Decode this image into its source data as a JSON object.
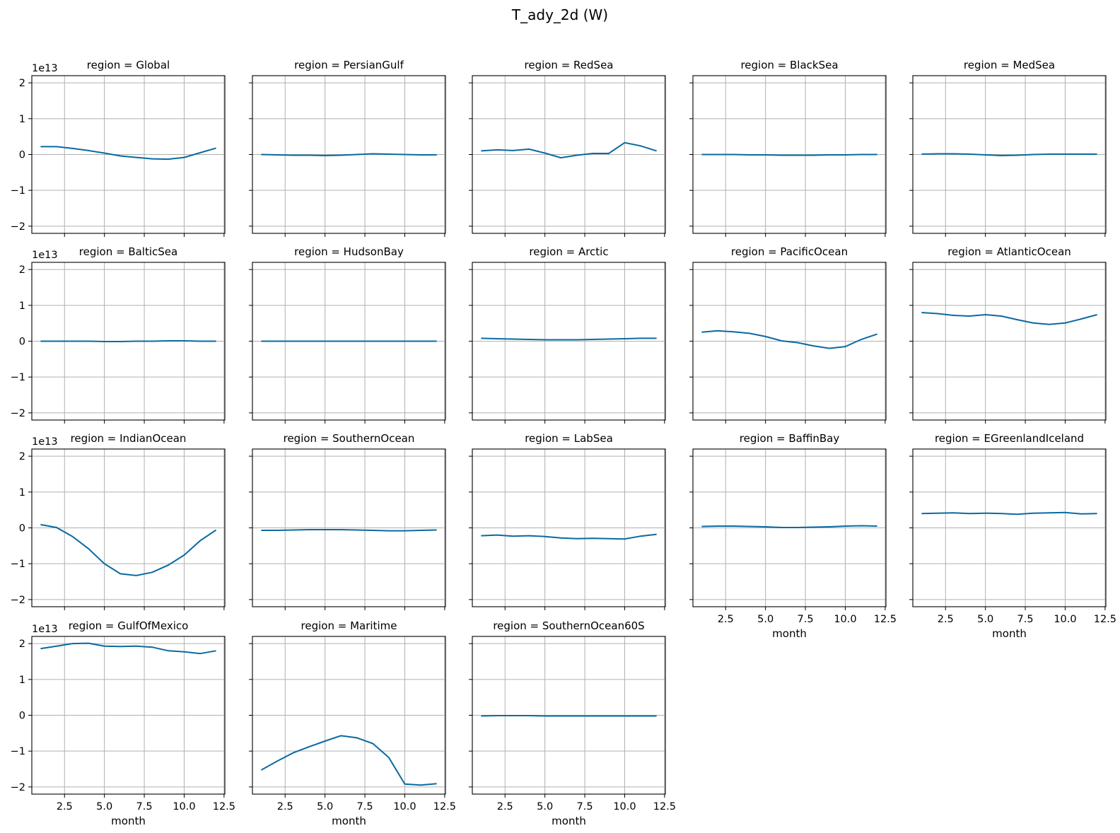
{
  "figure": {
    "title": "T_ady_2d (W)"
  },
  "colors": {
    "line": "#0a6aa0",
    "grid": "#b0b0b0",
    "axes": "#000000"
  },
  "axis": {
    "x_ticks": [
      "2.5",
      "5.0",
      "7.5",
      "10.0",
      "12.5"
    ],
    "y_ticks": [
      "−2",
      "−1",
      "0",
      "1",
      "2"
    ],
    "y_offset": "1e13",
    "xlabel": "month"
  },
  "chart_data": {
    "type": "line",
    "layout": "facet-grid 4x5, shared axes",
    "x": [
      1,
      2,
      3,
      4,
      5,
      6,
      7,
      8,
      9,
      10,
      11,
      12
    ],
    "xlim": [
      0.45,
      12.55
    ],
    "ylim": [
      2.2,
      -2.2
    ],
    "y_inverted": true,
    "y_scale": 10000000000000.0,
    "grid": true,
    "panels": [
      {
        "title": "region = Global",
        "values": [
          0.22,
          0.22,
          0.17,
          0.11,
          0.04,
          -0.04,
          -0.08,
          -0.12,
          -0.13,
          -0.08,
          0.05,
          0.18
        ]
      },
      {
        "title": "region = PersianGulf",
        "values": [
          0.0,
          -0.01,
          -0.02,
          -0.02,
          -0.03,
          -0.02,
          0.0,
          0.02,
          0.01,
          0.0,
          -0.01,
          -0.01
        ]
      },
      {
        "title": "region = RedSea",
        "values": [
          0.1,
          0.13,
          0.11,
          0.15,
          0.04,
          -0.09,
          -0.02,
          0.03,
          0.03,
          0.33,
          0.24,
          0.1
        ]
      },
      {
        "title": "region = BlackSea",
        "values": [
          0.0,
          0.0,
          0.0,
          -0.01,
          -0.01,
          -0.02,
          -0.02,
          -0.02,
          -0.01,
          -0.01,
          0.0,
          0.0
        ]
      },
      {
        "title": "region = MedSea",
        "values": [
          0.01,
          0.02,
          0.02,
          0.01,
          -0.01,
          -0.03,
          -0.02,
          0.0,
          0.01,
          0.01,
          0.01,
          0.01
        ]
      },
      {
        "title": "region = BalticSea",
        "values": [
          0.0,
          0.0,
          0.0,
          0.0,
          -0.01,
          -0.01,
          0.0,
          0.0,
          0.01,
          0.01,
          0.0,
          0.0
        ]
      },
      {
        "title": "region = HudsonBay",
        "values": [
          0.0,
          0.0,
          0.0,
          0.0,
          0.0,
          0.0,
          0.0,
          0.0,
          0.0,
          0.0,
          0.0,
          0.0
        ]
      },
      {
        "title": "region = Arctic",
        "values": [
          0.08,
          0.07,
          0.06,
          0.05,
          0.04,
          0.04,
          0.04,
          0.05,
          0.06,
          0.07,
          0.08,
          0.08
        ]
      },
      {
        "title": "region = PacificOcean",
        "values": [
          0.25,
          0.29,
          0.26,
          0.22,
          0.13,
          0.01,
          -0.04,
          -0.13,
          -0.2,
          -0.15,
          0.05,
          0.2
        ]
      },
      {
        "title": "region = AtlanticOcean",
        "values": [
          0.8,
          0.77,
          0.72,
          0.7,
          0.74,
          0.7,
          0.6,
          0.51,
          0.47,
          0.51,
          0.62,
          0.74
        ]
      },
      {
        "title": "region = IndianOcean",
        "values": [
          0.09,
          0.01,
          -0.24,
          -0.58,
          -1.0,
          -1.28,
          -1.33,
          -1.24,
          -1.04,
          -0.76,
          -0.36,
          -0.06
        ]
      },
      {
        "title": "region = SouthernOcean",
        "values": [
          -0.07,
          -0.07,
          -0.06,
          -0.05,
          -0.05,
          -0.05,
          -0.06,
          -0.07,
          -0.08,
          -0.08,
          -0.07,
          -0.06
        ]
      },
      {
        "title": "region = LabSea",
        "values": [
          -0.22,
          -0.2,
          -0.23,
          -0.22,
          -0.24,
          -0.28,
          -0.3,
          -0.29,
          -0.3,
          -0.31,
          -0.23,
          -0.18
        ]
      },
      {
        "title": "region = BaffinBay",
        "values": [
          0.04,
          0.05,
          0.05,
          0.04,
          0.03,
          0.01,
          0.01,
          0.02,
          0.03,
          0.05,
          0.06,
          0.05
        ]
      },
      {
        "title": "region = EGreenlandIceland",
        "values": [
          0.4,
          0.41,
          0.42,
          0.4,
          0.41,
          0.4,
          0.38,
          0.41,
          0.42,
          0.43,
          0.39,
          0.4
        ]
      },
      {
        "title": "region = GulfOfMexico",
        "values": [
          1.86,
          1.93,
          2.0,
          2.01,
          1.93,
          1.92,
          1.93,
          1.9,
          1.8,
          1.77,
          1.72,
          1.8
        ]
      },
      {
        "title": "region = Maritime",
        "values": [
          -1.53,
          -1.28,
          -1.05,
          -0.88,
          -0.72,
          -0.57,
          -0.63,
          -0.79,
          -1.18,
          -1.92,
          -1.95,
          -1.91
        ]
      },
      {
        "title": "region = SouthernOcean60S",
        "values": [
          -0.02,
          -0.01,
          -0.01,
          -0.01,
          -0.02,
          -0.02,
          -0.02,
          -0.02,
          -0.02,
          -0.02,
          -0.02,
          -0.02
        ]
      }
    ]
  }
}
